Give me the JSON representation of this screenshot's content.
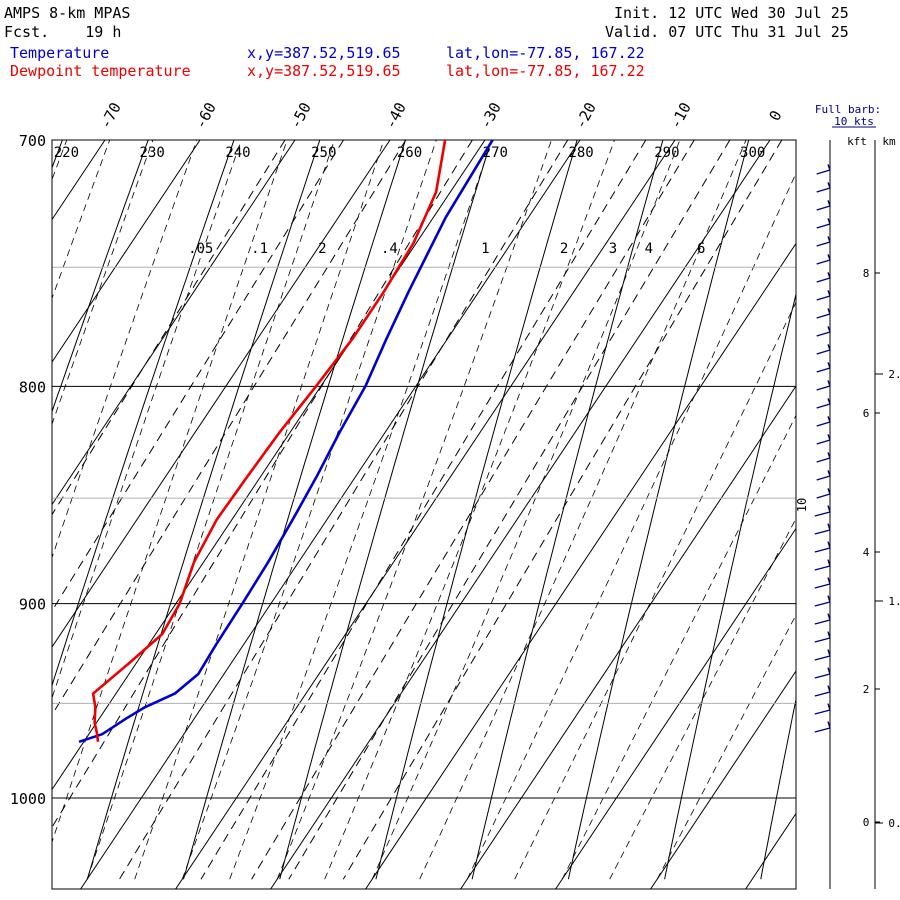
{
  "header": {
    "model": "AMPS 8-km MPAS",
    "fcst_label": "Fcst.",
    "fcst_value": "19 h",
    "init_label": "Init.",
    "init_value": "12 UTC Wed 30 Jul 25",
    "valid_label": "Valid.",
    "valid_value": "07 UTC Thu 31 Jul 25"
  },
  "legend": [
    {
      "name": "Temperature",
      "xy": "x,y=387.52,519.65",
      "latlon": "lat,lon=-77.85, 167.22",
      "color": "#0000cc"
    },
    {
      "name": "Dewpoint temperature",
      "xy": "x,y=387.52,519.65",
      "latlon": "lat,lon=-77.85, 167.22",
      "color": "#ee0000"
    }
  ],
  "barb_key": {
    "line1": "Full barb:",
    "line2": "10 kts",
    "color": "#000080"
  },
  "height_axis": {
    "kft_label": "kft",
    "km_label": "km"
  },
  "chart_data": {
    "type": "line",
    "kind": "skew-T log-p sounding",
    "pressure_range": [
      1040,
      700
    ],
    "pressure_ticks": [
      700,
      800,
      900,
      1000
    ],
    "dashed_isobars": [
      750,
      850,
      950
    ],
    "isotherm_labels": [
      -70,
      -60,
      -50,
      -40,
      -30,
      -20,
      -10,
      0
    ],
    "theta_labels": [
      220,
      230,
      240,
      250,
      260,
      270,
      280,
      290,
      300
    ],
    "mixing_ratio_labels": [
      ".05",
      ".1",
      "2",
      ".4",
      "1",
      "2",
      "3",
      "4",
      "6"
    ],
    "kft_ticks": [
      "8",
      "6",
      "4",
      "2",
      "0"
    ],
    "km_ticks": [
      "2.",
      "1.",
      "0."
    ],
    "barb_annotation": "10",
    "temperature": {
      "name": "Temperature",
      "unit": "C",
      "points": [
        [
          700,
          -29.2
        ],
        [
          730,
          -28.7
        ],
        [
          760,
          -27.4
        ],
        [
          780,
          -26.4
        ],
        [
          800,
          -25.3
        ],
        [
          820,
          -24.8
        ],
        [
          840,
          -24.1
        ],
        [
          860,
          -23.6
        ],
        [
          880,
          -23.2
        ],
        [
          900,
          -23.0
        ],
        [
          920,
          -22.9
        ],
        [
          935,
          -22.7
        ],
        [
          945,
          -23.8
        ],
        [
          952,
          -26.0
        ],
        [
          958,
          -27.2
        ],
        [
          966,
          -28.6
        ],
        [
          970,
          -30.5
        ]
      ]
    },
    "dewpoint": {
      "name": "Dewpoint temperature",
      "unit": "C",
      "points": [
        [
          700,
          -34.2
        ],
        [
          720,
          -31.5
        ],
        [
          740,
          -30.3
        ],
        [
          760,
          -30.0
        ],
        [
          780,
          -30.0
        ],
        [
          800,
          -30.5
        ],
        [
          820,
          -31.1
        ],
        [
          840,
          -31.4
        ],
        [
          860,
          -31.6
        ],
        [
          880,
          -31.0
        ],
        [
          900,
          -29.6
        ],
        [
          915,
          -29.3
        ],
        [
          930,
          -30.8
        ],
        [
          945,
          -32.4
        ],
        [
          952,
          -31.2
        ],
        [
          960,
          -30.2
        ],
        [
          965,
          -29.3
        ],
        [
          970,
          -28.5
        ]
      ]
    }
  }
}
